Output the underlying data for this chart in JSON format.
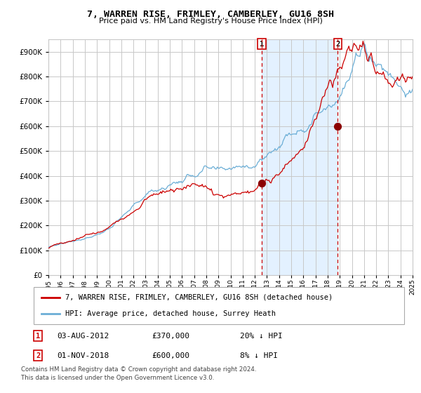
{
  "title": "7, WARREN RISE, FRIMLEY, CAMBERLEY, GU16 8SH",
  "subtitle": "Price paid vs. HM Land Registry's House Price Index (HPI)",
  "legend_line1": "7, WARREN RISE, FRIMLEY, CAMBERLEY, GU16 8SH (detached house)",
  "legend_line2": "HPI: Average price, detached house, Surrey Heath",
  "annotation1_label": "1",
  "annotation1_date": "03-AUG-2012",
  "annotation1_price": "£370,000",
  "annotation1_hpi": "20% ↓ HPI",
  "annotation2_label": "2",
  "annotation2_date": "01-NOV-2018",
  "annotation2_price": "£600,000",
  "annotation2_hpi": "8% ↓ HPI",
  "footnote1": "Contains HM Land Registry data © Crown copyright and database right 2024.",
  "footnote2": "This data is licensed under the Open Government Licence v3.0.",
  "hpi_color": "#6baed6",
  "price_color": "#cc0000",
  "marker_color": "#8b0000",
  "shade_color": "#ddeeff",
  "vline_color": "#cc0000",
  "annotation_box_color": "#cc0000",
  "grid_color": "#c8c8c8",
  "ylim": [
    0,
    950000
  ],
  "yticks": [
    0,
    100000,
    200000,
    300000,
    400000,
    500000,
    600000,
    700000,
    800000,
    900000
  ],
  "year_start": 1995,
  "year_end": 2025,
  "purchase1_year": 2012.58,
  "purchase1_value": 370000,
  "purchase2_year": 2018.83,
  "purchase2_value": 600000,
  "background_color": "#ffffff"
}
